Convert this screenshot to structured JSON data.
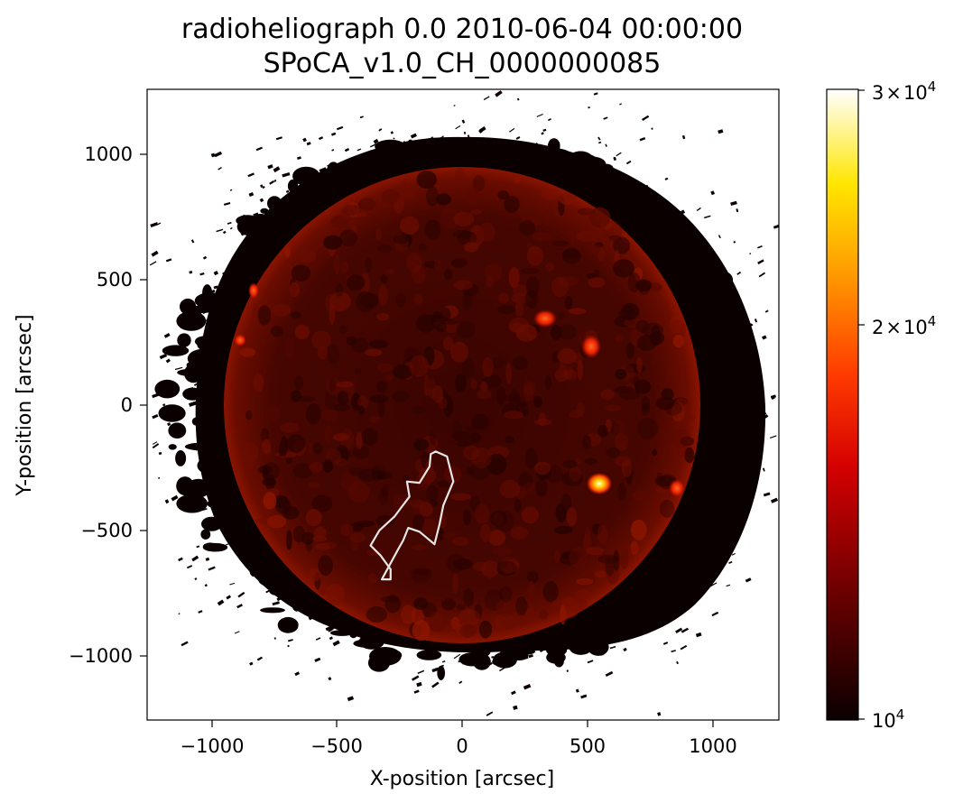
{
  "figure": {
    "title_line1": "radioheliograph  0.0 2010-06-04 00:00:00",
    "title_line2": "SPoCA_v1.0_CH_0000000085",
    "xlabel": "X-position [arcsec]",
    "ylabel": "Y-position [arcsec]",
    "x_ticks": [
      {
        "label": "−1000",
        "value": -1000
      },
      {
        "label": "−500",
        "value": -500
      },
      {
        "label": "0",
        "value": 0
      },
      {
        "label": "500",
        "value": 500
      },
      {
        "label": "1000",
        "value": 1000
      }
    ],
    "y_ticks": [
      {
        "label": "1000",
        "value": 1000
      },
      {
        "label": "500",
        "value": 500
      },
      {
        "label": "0",
        "value": 0
      },
      {
        "label": "−500",
        "value": -500
      },
      {
        "label": "−1000",
        "value": -1000
      }
    ],
    "xlim": [
      -1260,
      1260
    ],
    "ylim": [
      -1260,
      1260
    ],
    "colorbar": {
      "colormap": "hot",
      "scale": "log",
      "range": [
        10000,
        30000
      ],
      "tick_labels": {
        "top": {
          "mantissa": "3",
          "times": "×",
          "base": "10",
          "exp": "4"
        },
        "mid": {
          "mantissa": "2",
          "times": "×",
          "base": "10",
          "exp": "4"
        },
        "bottom": {
          "base": "10",
          "exp": "4"
        }
      }
    },
    "contour": {
      "color": "#e6e6e6",
      "label": "SPoCA_v1.0_CH_0000000085",
      "points": [
        [
          -105,
          -185
        ],
        [
          -60,
          -205
        ],
        [
          -35,
          -305
        ],
        [
          -75,
          -400
        ],
        [
          -90,
          -475
        ],
        [
          -110,
          -555
        ],
        [
          -170,
          -505
        ],
        [
          -215,
          -490
        ],
        [
          -235,
          -540
        ],
        [
          -255,
          -575
        ],
        [
          -320,
          -695
        ],
        [
          -285,
          -695
        ],
        [
          -285,
          -655
        ],
        [
          -325,
          -600
        ],
        [
          -365,
          -560
        ],
        [
          -330,
          -500
        ],
        [
          -270,
          -445
        ],
        [
          -240,
          -405
        ],
        [
          -210,
          -365
        ],
        [
          -220,
          -305
        ],
        [
          -170,
          -310
        ],
        [
          -130,
          -245
        ],
        [
          -125,
          -195
        ],
        [
          -105,
          -185
        ]
      ]
    }
  }
}
